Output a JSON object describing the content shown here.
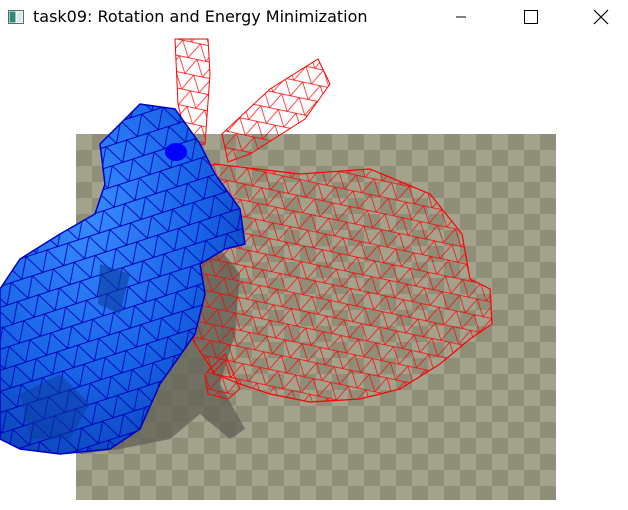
{
  "window": {
    "title": "task09: Rotation and Energy Minimization",
    "icon": "app-window-icon",
    "controls": [
      "minimize-icon",
      "maximize-icon",
      "close-icon"
    ]
  },
  "scene": {
    "background": "#ffffff",
    "floor_colors": [
      "#8f8e78",
      "#a3a28d"
    ],
    "shadow_color": "#5f5f55",
    "solid_mesh_fill": "#1a6ff0",
    "solid_mesh_edge": "#0000cc",
    "wire_mesh_color": "#ff0000"
  }
}
